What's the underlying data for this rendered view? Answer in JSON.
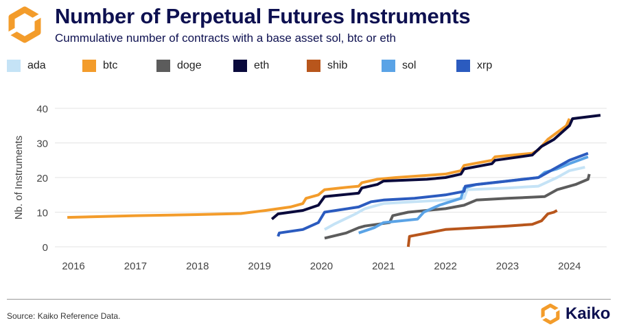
{
  "header": {
    "title": "Number of Perpetual Futures Instruments",
    "subtitle": "Cummulative number of contracts with a base asset sol, btc or eth"
  },
  "footer": {
    "source": "Source: Kaiko Reference Data.",
    "brand": "Kaiko"
  },
  "colors": {
    "title": "#0d1050",
    "logo_orange": "#f39c2b"
  },
  "chart_data": {
    "type": "line",
    "title": "Number of Perpetual Futures Instruments",
    "subtitle": "Cummulative number of contracts with a base asset sol, btc or eth",
    "xlabel": "",
    "ylabel": "Nb. of Instruments",
    "xlim": [
      2015.7,
      2024.6
    ],
    "ylim": [
      0,
      40
    ],
    "x_ticks": [
      "2016",
      "2017",
      "2018",
      "2019",
      "2020",
      "2021",
      "2022",
      "2023",
      "2024"
    ],
    "y_ticks": [
      "0",
      "10",
      "20",
      "30",
      "40"
    ],
    "grid": true,
    "legend_position": "top",
    "series": [
      {
        "name": "ada",
        "color": "#c5e3f6",
        "x": [
          2020.05,
          2020.2,
          2020.55,
          2020.7,
          2021.0,
          2021.5,
          2022.0,
          2022.3,
          2022.35,
          2023.0,
          2023.5,
          2023.8,
          2024.0,
          2024.25
        ],
        "y": [
          5,
          6.5,
          9.5,
          11,
          12.5,
          13,
          13.5,
          14,
          16.5,
          17,
          17.5,
          20,
          22,
          23
        ]
      },
      {
        "name": "btc",
        "color": "#f39c2b",
        "x": [
          2015.9,
          2017.0,
          2018.0,
          2018.7,
          2019.1,
          2019.5,
          2019.7,
          2019.75,
          2019.95,
          2020.05,
          2020.3,
          2020.6,
          2020.65,
          2020.9,
          2021.2,
          2022.0,
          2022.25,
          2022.3,
          2022.75,
          2022.8,
          2023.4,
          2023.5,
          2023.65,
          2023.8,
          2023.95,
          2024.0
        ],
        "y": [
          8.5,
          9,
          9.3,
          9.6,
          10.5,
          11.5,
          12.5,
          14,
          15,
          16.5,
          17,
          17.5,
          18.5,
          19.5,
          20,
          21,
          22,
          23.5,
          25,
          26,
          27,
          28,
          31,
          33,
          35,
          37
        ]
      },
      {
        "name": "doge",
        "color": "#5c5c5c",
        "x": [
          2020.05,
          2020.4,
          2020.6,
          2020.7,
          2021.1,
          2021.15,
          2021.4,
          2022.0,
          2022.3,
          2022.5,
          2023.0,
          2023.6,
          2023.8,
          2024.1,
          2024.3,
          2024.32
        ],
        "y": [
          2.5,
          4,
          5.5,
          6,
          7,
          9,
          10,
          11,
          12,
          13.5,
          14,
          14.5,
          16.5,
          18,
          19.5,
          21
        ]
      },
      {
        "name": "eth",
        "color": "#0a0a3c",
        "x": [
          2019.2,
          2019.3,
          2019.7,
          2019.95,
          2020.05,
          2020.6,
          2020.65,
          2020.9,
          2021.0,
          2021.7,
          2022.0,
          2022.25,
          2022.3,
          2022.75,
          2022.8,
          2023.4,
          2023.55,
          2023.75,
          2024.0,
          2024.05,
          2024.5
        ],
        "y": [
          8,
          9.5,
          10.5,
          12,
          14.5,
          15.5,
          17,
          18,
          19,
          19.5,
          20,
          21,
          22.5,
          24,
          25,
          26.5,
          29,
          31,
          35,
          37,
          38
        ]
      },
      {
        "name": "shib",
        "color": "#b8561c",
        "x": [
          2021.4,
          2021.42,
          2022.0,
          2023.0,
          2023.4,
          2023.55,
          2023.65,
          2023.75,
          2023.8
        ],
        "y": [
          0,
          3,
          5,
          6,
          6.5,
          7.5,
          9.5,
          10,
          10.5
        ]
      },
      {
        "name": "sol",
        "color": "#5aa3e6",
        "x": [
          2020.6,
          2020.85,
          2021.0,
          2021.55,
          2021.65,
          2021.9,
          2022.25,
          2022.3,
          2022.5,
          2023.0,
          2023.5,
          2023.6,
          2023.8,
          2024.0,
          2024.3
        ],
        "y": [
          4,
          5.5,
          7,
          8,
          10,
          12,
          14,
          17,
          18,
          19,
          20,
          21.5,
          22.5,
          24,
          26
        ]
      },
      {
        "name": "xrp",
        "color": "#2b5bbf",
        "x": [
          2019.3,
          2019.32,
          2019.7,
          2019.95,
          2020.05,
          2020.6,
          2020.8,
          2021.0,
          2021.5,
          2022.0,
          2022.3,
          2022.32,
          2022.5,
          2023.0,
          2023.5,
          2023.8,
          2024.0,
          2024.3
        ],
        "y": [
          3,
          4,
          5,
          7,
          10,
          11.5,
          13,
          13.5,
          14,
          15,
          16,
          17.5,
          18,
          19,
          20,
          23,
          25,
          27
        ]
      }
    ]
  }
}
